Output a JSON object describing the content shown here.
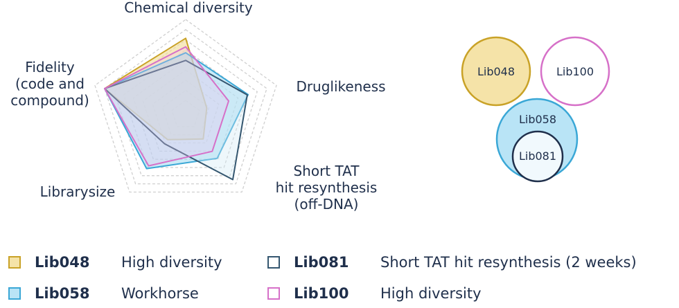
{
  "chart_data": [
    {
      "type": "radar",
      "title": "",
      "axes": [
        {
          "label_lines": [
            "Chemical diversity"
          ]
        },
        {
          "label_lines": [
            "Druglikeness"
          ]
        },
        {
          "label_lines": [
            "Short TAT",
            "hit resynthesis",
            "(off-DNA)"
          ]
        },
        {
          "label_lines": [
            "Librarysize"
          ]
        },
        {
          "label_lines": [
            "Fidelity",
            "(code and",
            "compound)"
          ]
        }
      ],
      "scale": [
        0,
        10
      ],
      "grid_levels": 9,
      "series": [
        {
          "name": "Lib048",
          "values": [
            9,
            2.6,
            3.5,
            3.6,
            10
          ],
          "color": "#c9a227",
          "fill": "#f2df9d",
          "fill_opacity": 0.65
        },
        {
          "name": "Lib058",
          "values": [
            7.3,
            7.7,
            6.3,
            7.8,
            10
          ],
          "color": "#3aa7d6",
          "fill": "#9fd8f0",
          "fill_opacity": 0.55
        },
        {
          "name": "Lib081",
          "values": [
            6.4,
            7.6,
            9.4,
            4.2,
            10
          ],
          "color": "#34566f",
          "fill": "#cfe8f3",
          "fill_opacity": 0.35
        },
        {
          "name": "Lib100",
          "values": [
            8,
            5.3,
            5.3,
            7.4,
            10
          ],
          "color": "#d670c8",
          "fill": "#efc2ea",
          "fill_opacity": 0.3
        }
      ]
    },
    {
      "type": "venn",
      "sets": [
        {
          "name": "Lib048",
          "color": "#c9a227",
          "fill": "#f5e3a8"
        },
        {
          "name": "Lib100",
          "color": "#d670c8",
          "fill": "#ffffff"
        },
        {
          "name": "Lib058",
          "color": "#3aa7d6",
          "fill": "#b9e4f6"
        },
        {
          "name": "Lib081",
          "color": "#1f2f4b",
          "fill": "#f1f9fd",
          "subset_of": "Lib058"
        }
      ]
    }
  ],
  "legend": [
    {
      "name": "Lib048",
      "desc": "High diversity",
      "color": "#c9a227",
      "fill": "#f5e3a8"
    },
    {
      "name": "Lib058",
      "desc": "Workhorse",
      "color": "#3aa7d6",
      "fill": "#b9e4f6"
    },
    {
      "name": "Lib081",
      "desc": "Short TAT hit resynthesis (2 weeks)",
      "color": "#34566f",
      "fill": "#ffffff"
    },
    {
      "name": "Lib100",
      "desc": "High diversity",
      "color": "#d670c8",
      "fill": "#ffffff"
    }
  ]
}
